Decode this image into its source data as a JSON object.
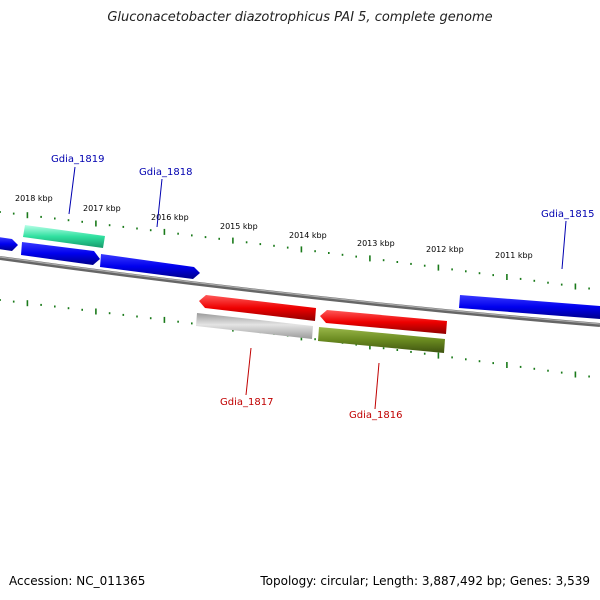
{
  "title": "Gluconacetobacter diazotrophicus PAI 5, complete genome",
  "footer": {
    "accession": "Accession: NC_011365",
    "summary": "Topology: circular; Length: 3,887,492 bp; Genes: 3,539"
  },
  "colors": {
    "forward_label": "#0000b0",
    "reverse_label": "#c00000",
    "backbone": "#808080",
    "ticks": "#1a7a1a",
    "cds_forward": "#0000ee",
    "cds_reverse": "#ee0000",
    "rna": "#30e0a0",
    "pseudo": "#b0b0b0",
    "other": "#6a8a20"
  },
  "scale": {
    "unit": "kbp",
    "labels": [
      {
        "kbp": 2018,
        "text": "2018 kbp"
      },
      {
        "kbp": 2017,
        "text": "2017 kbp"
      },
      {
        "kbp": 2016,
        "text": "2016 kbp"
      },
      {
        "kbp": 2015,
        "text": "2015 kbp"
      },
      {
        "kbp": 2014,
        "text": "2014 kbp"
      },
      {
        "kbp": 2013,
        "text": "2013 kbp"
      },
      {
        "kbp": 2012,
        "text": "2012 kbp"
      },
      {
        "kbp": 2011,
        "text": "2011 kbp"
      }
    ]
  },
  "genes": [
    {
      "label": "Gdia_1819",
      "strand": "forward"
    },
    {
      "label": "Gdia_1818",
      "strand": "forward"
    },
    {
      "label": "Gdia_1815",
      "strand": "forward"
    },
    {
      "label": "Gdia_1817",
      "strand": "reverse"
    },
    {
      "label": "Gdia_1816",
      "strand": "reverse"
    }
  ]
}
